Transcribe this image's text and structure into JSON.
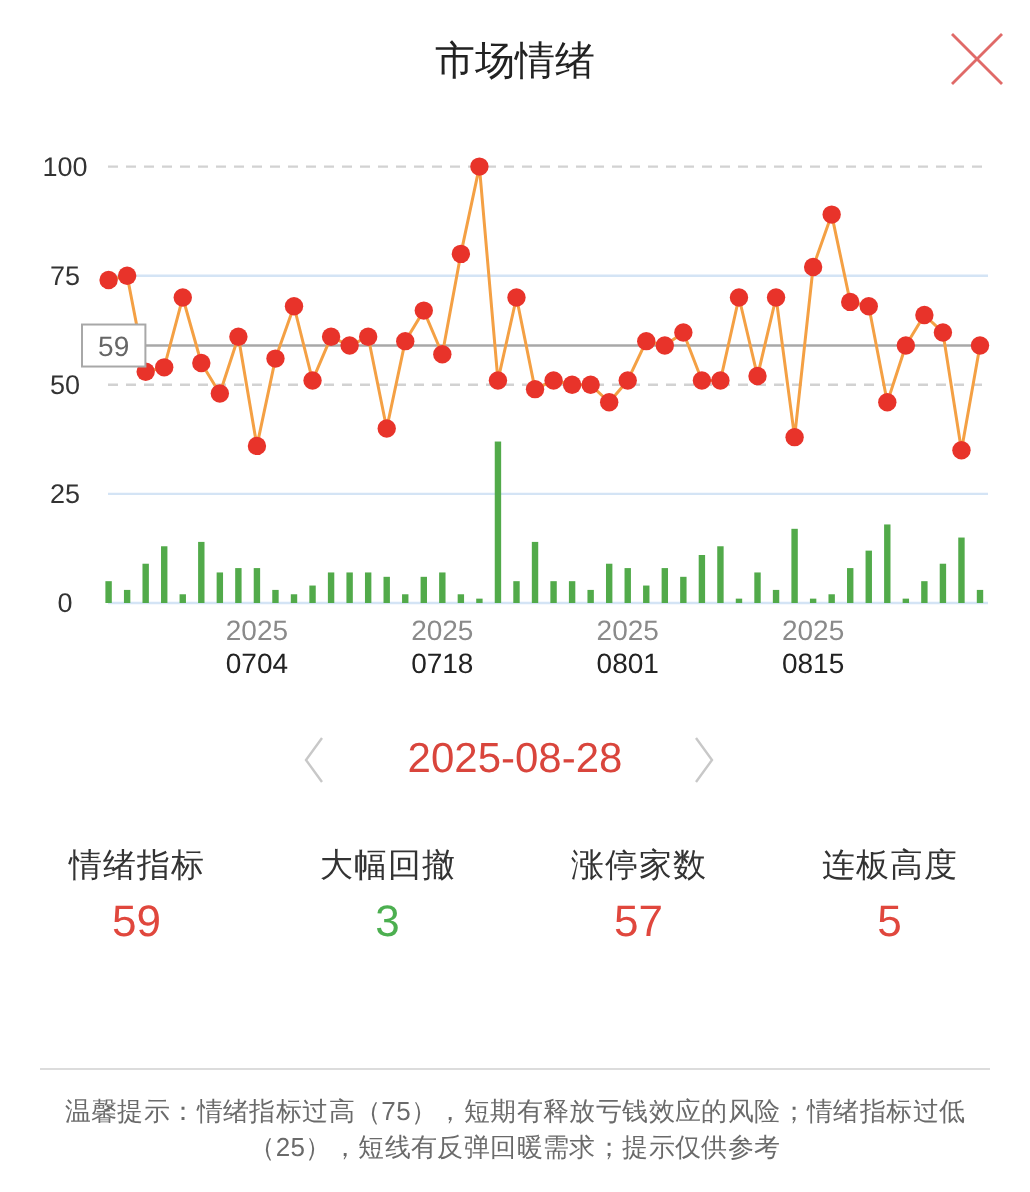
{
  "chart_data": [
    {
      "type": "line",
      "title": "市场情绪",
      "categories": [
        null,
        null,
        null,
        null,
        null,
        null,
        null,
        null,
        "2025 0704",
        null,
        null,
        null,
        null,
        null,
        null,
        null,
        null,
        null,
        "2025 0718",
        null,
        null,
        null,
        null,
        null,
        null,
        null,
        null,
        null,
        "2025 0801",
        null,
        null,
        null,
        null,
        null,
        null,
        null,
        null,
        null,
        "2025 0815",
        null,
        null,
        null,
        null,
        null,
        null,
        null,
        null,
        null
      ],
      "series": [
        {
          "type": "bar",
          "color": "#52aa4a",
          "values": [
            5,
            3,
            9,
            13,
            2,
            14,
            7,
            8,
            8,
            3,
            2,
            4,
            7,
            7,
            7,
            6,
            2,
            6,
            7,
            2,
            1,
            37,
            5,
            14,
            5,
            5,
            3,
            9,
            8,
            4,
            8,
            6,
            11,
            13,
            1,
            7,
            3,
            17,
            1,
            2,
            8,
            12,
            18,
            1,
            5,
            9,
            15,
            3
          ]
        },
        {
          "type": "line",
          "color": "#f4a044",
          "colors": [
            "#e8332a",
            "#e8332a",
            "#e8332a",
            "#e8332a",
            "#e8332a",
            "#e8332a",
            "#e8332a",
            "#e8332a",
            "#e8332a",
            "#e8332a",
            "#e8332a",
            "#e8332a",
            "#e8332a",
            "#e8332a",
            "#e8332a",
            "#e8332a",
            "#e8332a",
            "#e8332a",
            "#e8332a",
            "#e8332a",
            "#e8332a",
            "#e8332a",
            "#e8332a",
            "#e8332a",
            "#e8332a",
            "#e8332a",
            "#e8332a",
            "#e8332a",
            "#e8332a",
            "#e8332a",
            "#e8332a",
            "#e8332a",
            "#e8332a",
            "#e8332a",
            "#e8332a",
            "#e8332a",
            "#e8332a",
            "#e8332a",
            "#e8332a",
            "#e8332a",
            "#e8332a",
            "#e8332a",
            "#e8332a",
            "#e8332a",
            "#e8332a",
            "#e8332a",
            "#e8332a",
            "#e8332a"
          ],
          "values": [
            74,
            75,
            53,
            54,
            70,
            55,
            48,
            61,
            36,
            56,
            68,
            51,
            61,
            59,
            61,
            40,
            60,
            67,
            57,
            80,
            100,
            51,
            70,
            49,
            51,
            50,
            50,
            46,
            51,
            60,
            59,
            62,
            51,
            51,
            70,
            52,
            70,
            38,
            77,
            89,
            69,
            68,
            46,
            59,
            66,
            62,
            35,
            59
          ]
        }
      ],
      "ylim": [
        0,
        100
      ],
      "yticks": [
        0,
        25,
        50,
        75,
        100
      ],
      "marker": "circle",
      "ref_lines": [
        {
          "axis": "y",
          "value": 50,
          "color": "#d2d2d2",
          "line_style": "dashed"
        },
        {
          "axis": "y",
          "value": 100,
          "color": "#d2d2d2",
          "line_style": "dashed"
        },
        {
          "axis": "y",
          "value": 25,
          "color": "#d4e4f5"
        },
        {
          "axis": "y",
          "value": 75,
          "color": "#d4e4f5"
        },
        {
          "axis": "y",
          "value": 59,
          "label": "59",
          "color": "#a8a8a8"
        }
      ]
    },
    {
      "type": "other",
      "title": "2025-08-28",
      "categories": [
        "情绪指标",
        "大幅回撤",
        "涨停家数",
        "连板高度"
      ],
      "values": [
        59,
        3,
        57,
        5
      ],
      "colors": [
        "#e0473d",
        "#4caf50",
        "#e0473d",
        "#e0473d"
      ],
      "data_labels": true,
      "annotations": [
        "温馨提示：情绪指标过高（75），短期有释放亏钱效应的风险；情绪指标过低（25），短线有反弹回暖需求；提示仅供参考"
      ]
    }
  ]
}
